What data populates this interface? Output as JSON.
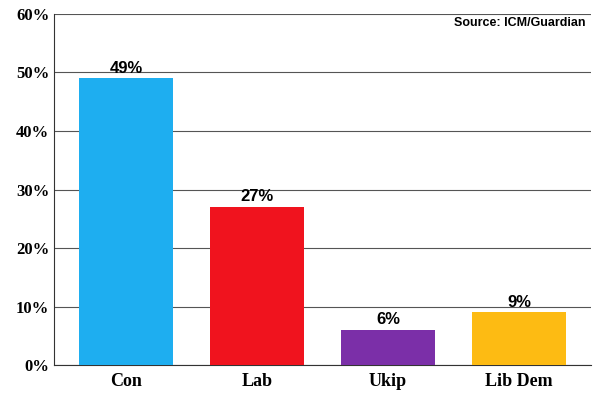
{
  "chart_data": {
    "type": "bar",
    "annotations": [
      "Source: ICM/Guardian"
    ],
    "categories": [
      "Con",
      "Lab",
      "Ukip",
      "Lib Dem"
    ],
    "values": [
      49,
      27,
      6,
      9
    ],
    "value_labels": [
      "49%",
      "27%",
      "6%",
      "9%"
    ],
    "colors": [
      "#1eaef0",
      "#f0131e",
      "#7b2fa8",
      "#fdbb13"
    ],
    "ylim": [
      0,
      60
    ],
    "yticks": [
      {
        "value": 0,
        "label": "0%"
      },
      {
        "value": 10,
        "label": "10%"
      },
      {
        "value": 20,
        "label": "20%"
      },
      {
        "value": 30,
        "label": "30%"
      },
      {
        "value": 40,
        "label": "40%"
      },
      {
        "value": 50,
        "label": "50%"
      },
      {
        "value": 60,
        "label": "60%"
      }
    ],
    "grid": true,
    "data_labels": true
  }
}
